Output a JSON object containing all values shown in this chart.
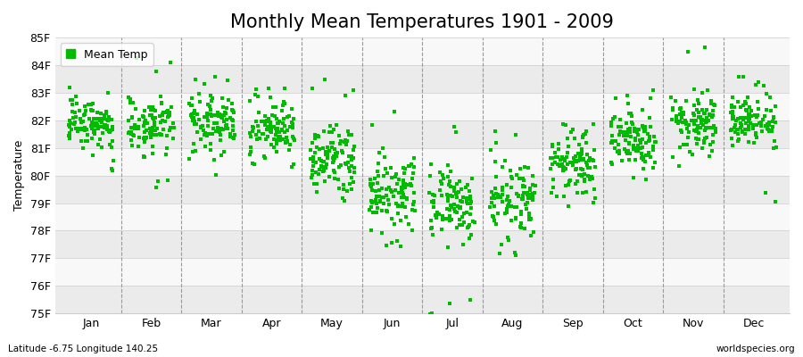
{
  "title": "Monthly Mean Temperatures 1901 - 2009",
  "ylabel": "Temperature",
  "xlabel_bottom_left": "Latitude -6.75 Longitude 140.25",
  "xlabel_bottom_right": "worldspecies.org",
  "ylim": [
    75,
    85
  ],
  "yticks": [
    75,
    76,
    77,
    78,
    79,
    80,
    81,
    82,
    83,
    84,
    85
  ],
  "ytick_labels": [
    "75F",
    "76F",
    "77F",
    "78F",
    "79F",
    "80F",
    "81F",
    "82F",
    "83F",
    "84F",
    "85F"
  ],
  "months": [
    "Jan",
    "Feb",
    "Mar",
    "Apr",
    "May",
    "Jun",
    "Jul",
    "Aug",
    "Sep",
    "Oct",
    "Nov",
    "Dec"
  ],
  "dot_color": "#00bb00",
  "dot_size": 9,
  "background_color": "#ffffff",
  "plot_bg_color": "#ffffff",
  "band_colors": [
    "#ebebeb",
    "#f8f8f8"
  ],
  "grid_color": "#cccccc",
  "dashed_line_color": "#999999",
  "title_fontsize": 15,
  "legend_fontsize": 9,
  "axis_fontsize": 9,
  "years": 109,
  "seed": 42,
  "monthly_means_F": [
    81.9,
    81.7,
    81.9,
    81.7,
    80.6,
    79.5,
    79.0,
    79.2,
    80.3,
    81.3,
    81.9,
    82.0
  ],
  "monthly_stds_F": [
    0.45,
    0.5,
    0.45,
    0.45,
    0.55,
    0.65,
    0.7,
    0.65,
    0.6,
    0.55,
    0.5,
    0.5
  ],
  "monthly_min_F": [
    80.5,
    79.7,
    80.5,
    80.5,
    79.5,
    77.8,
    75.3,
    77.5,
    79.5,
    80.2,
    80.8,
    79.3
  ],
  "monthly_max_F": [
    82.8,
    83.9,
    83.2,
    83.2,
    83.0,
    82.0,
    81.3,
    81.3,
    81.5,
    82.7,
    84.2,
    83.2
  ]
}
